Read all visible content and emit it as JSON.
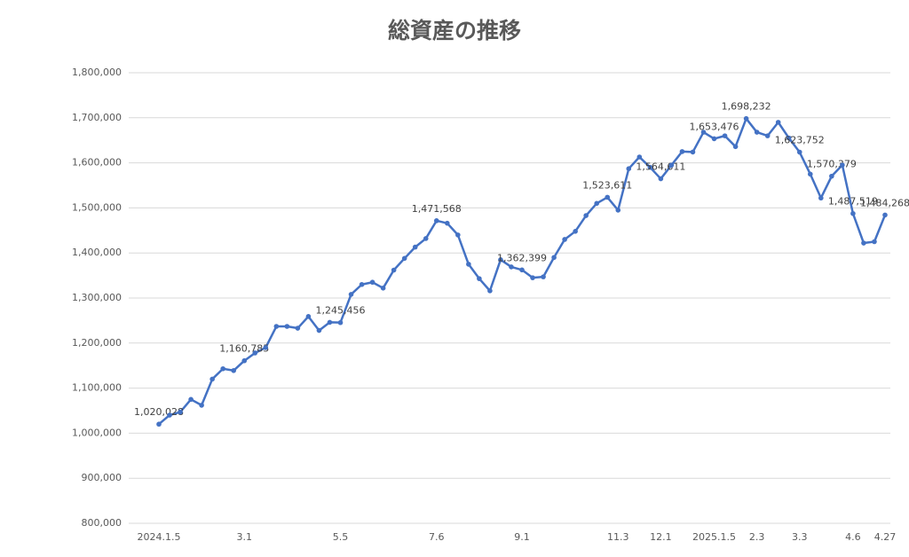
{
  "chart_data": {
    "type": "line",
    "title": "総資産の推移",
    "categories": [
      "2024.1.5",
      null,
      null,
      null,
      null,
      null,
      null,
      null,
      "3.1",
      null,
      null,
      null,
      null,
      null,
      null,
      null,
      null,
      "5.5",
      null,
      null,
      null,
      null,
      null,
      null,
      null,
      null,
      "7.6",
      null,
      null,
      null,
      null,
      null,
      null,
      null,
      "9.1",
      null,
      null,
      null,
      null,
      null,
      null,
      null,
      null,
      "11.3",
      null,
      null,
      null,
      "12.1",
      null,
      null,
      null,
      null,
      "2025.1.5",
      null,
      null,
      null,
      "2.3",
      null,
      null,
      null,
      "3.3",
      null,
      null,
      null,
      null,
      "4.6",
      null,
      null,
      "4.27"
    ],
    "series": [
      {
        "name": "総資産",
        "color": "#4472c4",
        "values": [
          1020028,
          1040000,
          1047000,
          1075000,
          1062000,
          1120000,
          1143000,
          1139000,
          1160785,
          1178000,
          1190000,
          1237000,
          1237000,
          1233000,
          1259000,
          1228000,
          1246000,
          1245456,
          1308000,
          1330000,
          1335000,
          1322000,
          1362000,
          1388000,
          1413000,
          1432000,
          1471568,
          1466000,
          1440000,
          1375000,
          1343000,
          1316000,
          1385000,
          1369000,
          1362399,
          1345000,
          1347000,
          1390000,
          1430000,
          1448000,
          1483000,
          1510000,
          1523611,
          1495000,
          1587000,
          1613000,
          1590000,
          1564611,
          1595000,
          1625000,
          1624000,
          1668000,
          1653476,
          1660000,
          1636000,
          1698232,
          1668000,
          1660000,
          1690000,
          1655000,
          1623752,
          1575000,
          1522000,
          1570379,
          1595000,
          1487519,
          1422000,
          1425000,
          1484268
        ],
        "value_labels": [
          "1,020,028",
          null,
          null,
          null,
          null,
          null,
          null,
          null,
          "1,160,785",
          null,
          null,
          null,
          null,
          null,
          null,
          null,
          null,
          "1,245,456",
          null,
          null,
          null,
          null,
          null,
          null,
          null,
          null,
          "1,471,568",
          null,
          null,
          null,
          null,
          null,
          null,
          null,
          "1,362,399",
          null,
          null,
          null,
          null,
          null,
          null,
          null,
          "1,523,611",
          null,
          null,
          null,
          null,
          "1,564,611",
          null,
          null,
          null,
          null,
          "1,653,476",
          null,
          null,
          "1,698,232",
          null,
          null,
          null,
          null,
          "1,623,752",
          null,
          null,
          "1,570,379",
          null,
          "1,487,519",
          null,
          null,
          "1,484,268"
        ]
      }
    ],
    "ylim": [
      800000,
      1800000
    ],
    "yticks": [
      {
        "value": 800000,
        "label": "800,000"
      },
      {
        "value": 900000,
        "label": "900,000"
      },
      {
        "value": 1000000,
        "label": "1,000,000"
      },
      {
        "value": 1100000,
        "label": "1,100,000"
      },
      {
        "value": 1200000,
        "label": "1,200,000"
      },
      {
        "value": 1300000,
        "label": "1,300,000"
      },
      {
        "value": 1400000,
        "label": "1,400,000"
      },
      {
        "value": 1500000,
        "label": "1,500,000"
      },
      {
        "value": 1600000,
        "label": "1,600,000"
      },
      {
        "value": 1700000,
        "label": "1,700,000"
      },
      {
        "value": 1800000,
        "label": "1,800,000"
      }
    ],
    "grid": true
  }
}
